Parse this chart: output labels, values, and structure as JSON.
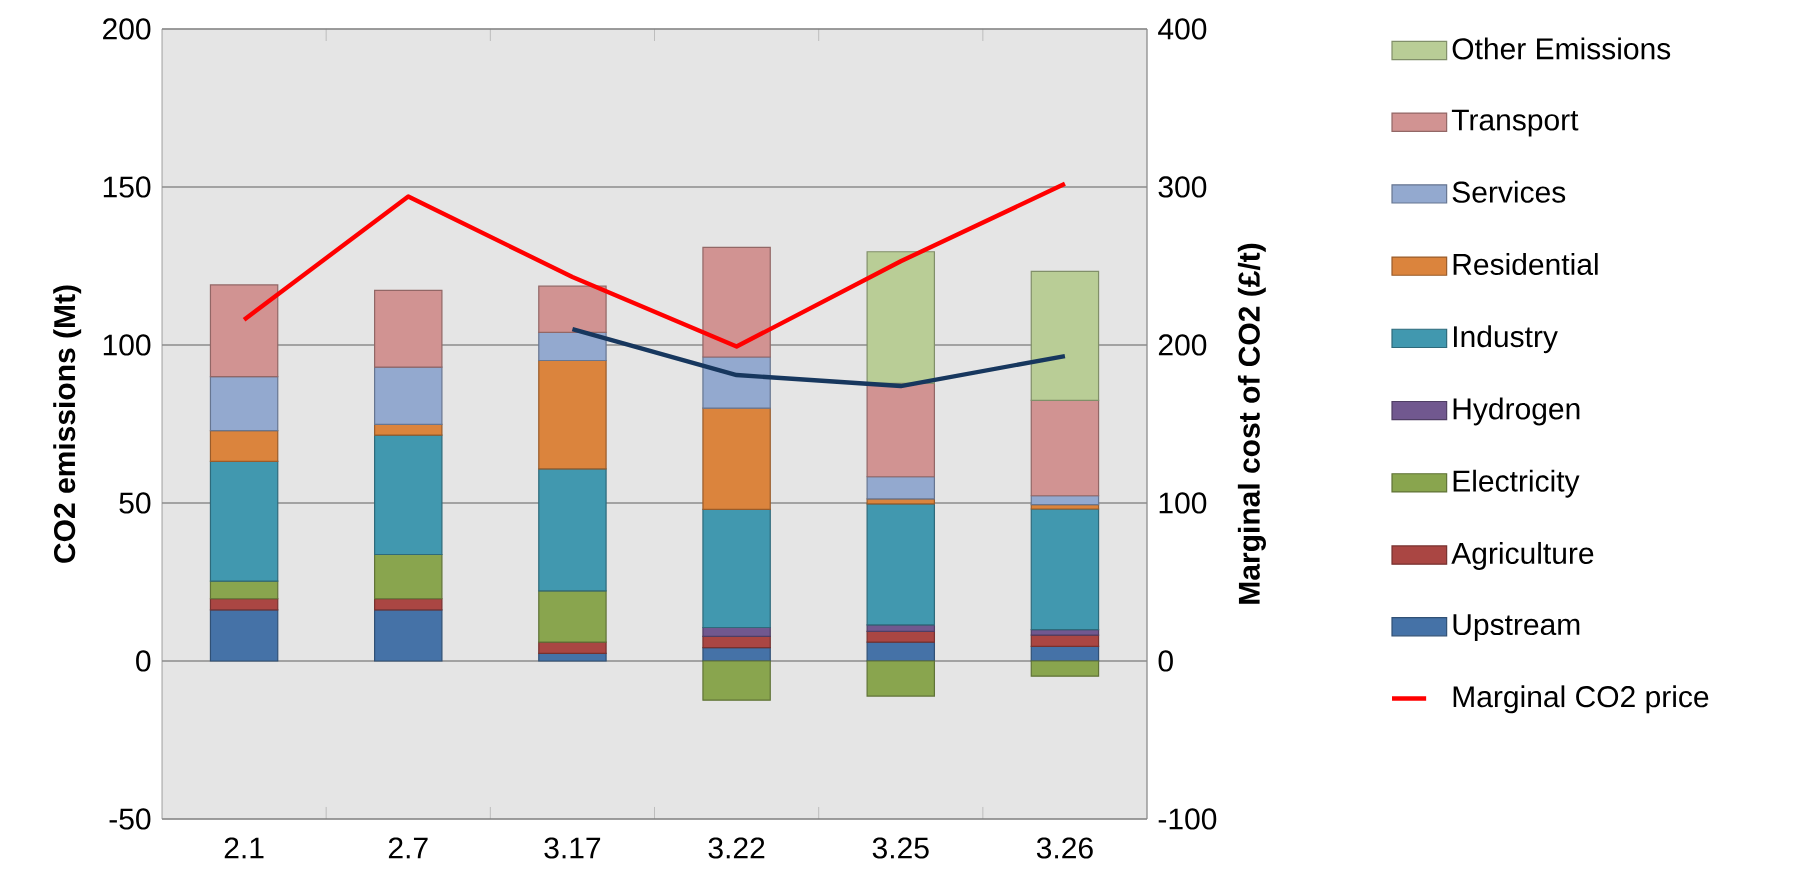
{
  "chart_data": {
    "type": "bar",
    "stacked": true,
    "ylabel": "CO2 emissions (Mt)",
    "y2label": "Marginal cost of CO2 (£/t)",
    "categories": [
      "2.1",
      "2.7",
      "3.17",
      "3.22",
      "3.25",
      "3.26"
    ],
    "series": [
      {
        "name": "Upstream",
        "color": "#4572a7",
        "values": [
          16.2,
          16.2,
          2.4,
          4.2,
          6.0,
          4.6
        ]
      },
      {
        "name": "Agriculture",
        "color": "#aa4643",
        "values": [
          3.5,
          3.5,
          3.6,
          3.6,
          3.4,
          3.6
        ]
      },
      {
        "name": "Electricity",
        "color": "#89a54e",
        "values": [
          5.6,
          14.0,
          16.2,
          -12.4,
          -11.1,
          -4.8
        ]
      },
      {
        "name": "Hydrogen",
        "color": "#71588f",
        "values": [
          null,
          null,
          null,
          2.8,
          2.0,
          1.7
        ]
      },
      {
        "name": "Industry",
        "color": "#4198af",
        "values": [
          37.9,
          37.8,
          38.6,
          37.4,
          38.3,
          38.2
        ]
      },
      {
        "name": "Residential",
        "color": "#db843d",
        "values": [
          9.7,
          3.4,
          34.3,
          32.0,
          1.6,
          1.4
        ]
      },
      {
        "name": "Services",
        "color": "#93a9cf",
        "values": [
          17.1,
          18.1,
          8.9,
          16.2,
          7.0,
          2.8
        ]
      },
      {
        "name": "Transport",
        "color": "#d19392",
        "values": [
          29.0,
          24.3,
          14.6,
          34.7,
          29.6,
          30.2
        ]
      },
      {
        "name": "Other Emissions",
        "color": "#b9cd96",
        "values": [
          null,
          null,
          null,
          null,
          41.6,
          40.8
        ]
      },
      {
        "name": "Marginal CO2 price",
        "type": "line",
        "axis": "y2",
        "color": "#ff0000",
        "values": [
          216,
          294,
          243,
          199,
          253,
          302
        ]
      },
      {
        "type": "line",
        "axis": "y2",
        "color": "#17375e",
        "values": [
          null,
          null,
          210,
          181,
          174,
          193
        ]
      }
    ],
    "ylim": [
      -50,
      200
    ],
    "yticks": [
      -50,
      0,
      50,
      100,
      150,
      200
    ],
    "y2lim": [
      -100,
      400
    ],
    "y2ticks": [
      -100,
      0,
      100,
      200,
      300,
      400
    ],
    "grid": "y",
    "legend": "right",
    "line_style": "solid"
  }
}
